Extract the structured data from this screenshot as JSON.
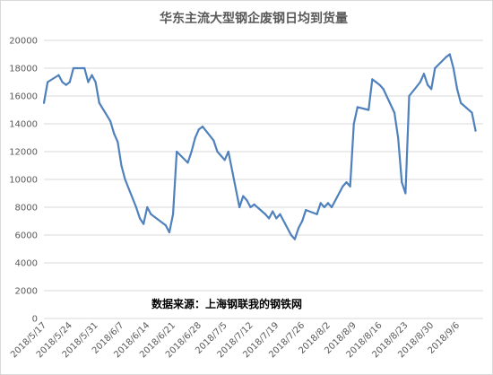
{
  "chart_data": {
    "type": "line",
    "title": "华东主流大型钢企废钢日均到货量",
    "annotation": "数据来源：上海钢联我的钢铁网",
    "xlabel": "",
    "ylabel": "",
    "ylim": [
      0,
      20000
    ],
    "yticks": [
      "0",
      "2000",
      "4000",
      "6000",
      "8000",
      "10000",
      "12000",
      "14000",
      "16000",
      "18000",
      "20000"
    ],
    "xticks": [
      "2018/5/17",
      "2018/5/24",
      "2018/5/31",
      "2018/6/7",
      "2018/6/14",
      "2018/6/21",
      "2018/6/28",
      "2018/7/5",
      "2018/7/12",
      "2018/7/19",
      "2018/7/26",
      "2018/8/2",
      "2018/8/9",
      "2018/8/16",
      "2018/8/23",
      "2018/8/30",
      "2018/9/6"
    ],
    "grid": true,
    "line_color": "#4f81bd",
    "series": [
      {
        "x": [
          "2018/5/17",
          "2018/5/18",
          "2018/5/21",
          "2018/5/22",
          "2018/5/23",
          "2018/5/24",
          "2018/5/25",
          "2018/5/28",
          "2018/5/29",
          "2018/5/30",
          "2018/5/31",
          "2018/6/1",
          "2018/6/4",
          "2018/6/5",
          "2018/6/6",
          "2018/6/7",
          "2018/6/8",
          "2018/6/11",
          "2018/6/12",
          "2018/6/13",
          "2018/6/14",
          "2018/6/15",
          "2018/6/19",
          "2018/6/20",
          "2018/6/21",
          "2018/6/22",
          "2018/6/25",
          "2018/6/26",
          "2018/6/27",
          "2018/6/28",
          "2018/6/29",
          "2018/7/2",
          "2018/7/3",
          "2018/7/4",
          "2018/7/5",
          "2018/7/6",
          "2018/7/9",
          "2018/7/10",
          "2018/7/11",
          "2018/7/12",
          "2018/7/13",
          "2018/7/16",
          "2018/7/17",
          "2018/7/18",
          "2018/7/19",
          "2018/7/20",
          "2018/7/23",
          "2018/7/24",
          "2018/7/25",
          "2018/7/26",
          "2018/7/27",
          "2018/7/30",
          "2018/7/31",
          "2018/8/1",
          "2018/8/2",
          "2018/8/3",
          "2018/8/6",
          "2018/8/7",
          "2018/8/8",
          "2018/8/9",
          "2018/8/10",
          "2018/8/13",
          "2018/8/14",
          "2018/8/15",
          "2018/8/16",
          "2018/8/17",
          "2018/8/20",
          "2018/8/21",
          "2018/8/22",
          "2018/8/23",
          "2018/8/24",
          "2018/8/27",
          "2018/8/28",
          "2018/8/29",
          "2018/8/30",
          "2018/8/31",
          "2018/9/3",
          "2018/9/4",
          "2018/9/5",
          "2018/9/6",
          "2018/9/7",
          "2018/9/10",
          "2018/9/11"
        ],
        "values": [
          15500,
          17000,
          17500,
          17000,
          16800,
          17000,
          18000,
          18000,
          17000,
          17500,
          17000,
          15500,
          14200,
          13300,
          12700,
          11000,
          10000,
          8000,
          7200,
          6800,
          8000,
          7500,
          6700,
          6200,
          7500,
          12000,
          11200,
          12000,
          13000,
          13600,
          13800,
          12800,
          12000,
          11700,
          11400,
          12000,
          8000,
          8800,
          8500,
          8000,
          8200,
          7500,
          7200,
          7700,
          7200,
          7500,
          6000,
          5700,
          6500,
          7000,
          7800,
          7500,
          8300,
          8000,
          8300,
          8000,
          9500,
          9800,
          9500,
          14000,
          15200,
          15000,
          17200,
          17000,
          16800,
          16500,
          14800,
          13000,
          9800,
          9000,
          16000,
          17000,
          17600,
          16800,
          16500,
          18000,
          18800,
          19000,
          18000,
          16500,
          15500,
          14800,
          13500
        ]
      }
    ]
  }
}
